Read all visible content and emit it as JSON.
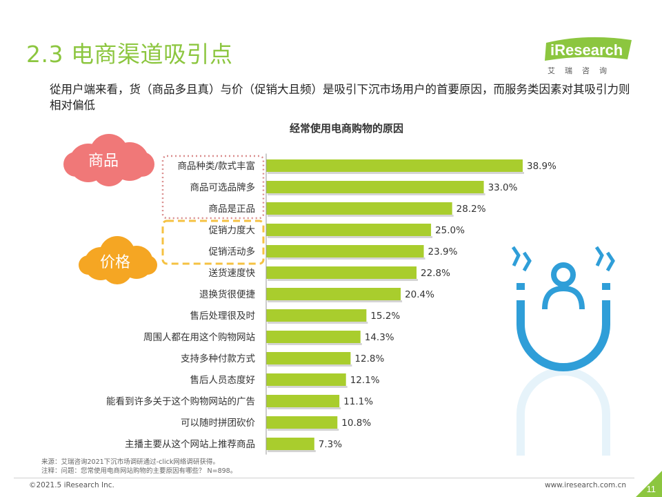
{
  "header": {
    "title": "2.3 电商渠道吸引点",
    "subtitle": "從用户端来看，货（商品多且真）与价（促销大且频）是吸引下沉市场用户的首要原因，而服务类因素对其吸引力则相对偏低"
  },
  "logo": {
    "brand": "iResearch",
    "tagline": "艾瑞咨询"
  },
  "clouds": {
    "goods": "商品",
    "price": "价格"
  },
  "colors": {
    "bar": "#a9cd2d",
    "title": "#8cc63f",
    "goods_cloud": "#f07878",
    "price_cloud": "#f5a623",
    "goods_box": "#d98c8c",
    "price_box": "#f5c242",
    "icon": "#2f9ed8"
  },
  "chart_data": {
    "type": "bar",
    "orientation": "horizontal",
    "title": "经常使用电商购物的原因",
    "categories": [
      "商品种类/款式丰富",
      "商品可选品牌多",
      "商品是正品",
      "促销力度大",
      "促销活动多",
      "送货速度快",
      "退换货很便捷",
      "售后处理很及时",
      "周围人都在用这个购物网站",
      "支持多种付款方式",
      "售后人员态度好",
      "能看到许多关于这个购物网站的广告",
      "可以随时拼团砍价",
      "主播主要从这个网站上推荐商品"
    ],
    "values": [
      38.9,
      33.0,
      28.2,
      25.0,
      23.9,
      22.8,
      20.4,
      15.2,
      14.3,
      12.8,
      12.1,
      11.1,
      10.8,
      7.3
    ],
    "value_labels": [
      "38.9%",
      "33.0%",
      "28.2%",
      "25.0%",
      "23.9%",
      "22.8%",
      "20.4%",
      "15.2%",
      "14.3%",
      "12.8%",
      "12.1%",
      "11.1%",
      "10.8%",
      "7.3%"
    ],
    "xlim": [
      0,
      40
    ],
    "grid": false
  },
  "footer": {
    "source": "来源：艾瑞咨询2021下沉市场调研通过-click网络调研获得。",
    "note": "注释：问题：您常使用电商网站购物的主要原因有哪些？ N=898。",
    "copyright": "©2021.5 iResearch Inc.",
    "website": "www.iresearch.com.cn",
    "page": "11"
  }
}
